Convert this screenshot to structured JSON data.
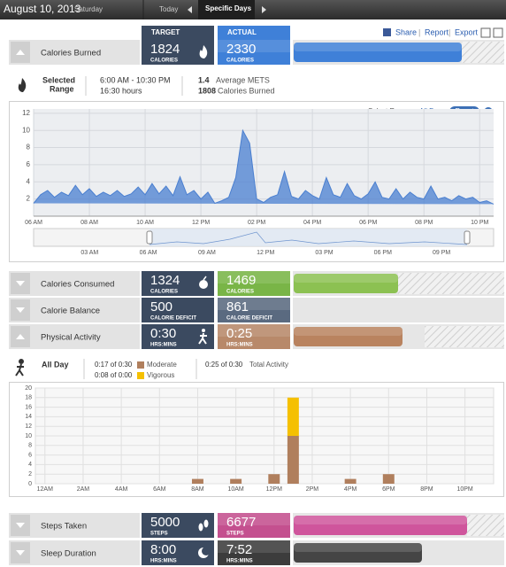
{
  "header": {
    "date": "August 10, 2013",
    "weekday": "Saturday",
    "tabs": [
      "Today",
      "Specific Days"
    ]
  },
  "toolbar": {
    "columns": [
      "TARGET",
      "ACTUAL"
    ],
    "links": [
      "Share",
      "Report",
      "Export"
    ]
  },
  "rows": [
    {
      "label": "Calories Burned",
      "target": 1824,
      "target_unit": "CALORIES",
      "actual": 2330,
      "actual_unit": "CALORIES"
    },
    {
      "label": "Calories Consumed",
      "target": 1324,
      "target_unit": "CALORIES",
      "actual": 1469,
      "actual_unit": "CALORIES"
    },
    {
      "label": "Calorie Balance",
      "target": 500,
      "target_unit": "CALORIE DEFICIT",
      "actual": 861,
      "actual_unit": "CALORIE DEFICIT"
    },
    {
      "label": "Physical Activity",
      "target": "0:30",
      "target_unit": "HRS:MINS",
      "actual": "0:25",
      "actual_unit": "HRS:MINS"
    },
    {
      "label": "Steps Taken",
      "target": 5000,
      "target_unit": "STEPS",
      "actual": 6677,
      "actual_unit": "STEPS"
    },
    {
      "label": "Sleep Duration",
      "target": "8:00",
      "target_unit": "HRS:MINS",
      "actual": "7:52",
      "actual_unit": "HRS:MINS"
    }
  ],
  "selected_range": {
    "title": [
      "Selected",
      "Range"
    ],
    "range": "6:00 AM - 10:30 PM",
    "duration": "16:30 hours",
    "mets": 1.4,
    "mets_label": "Average METS",
    "calories": 1808,
    "calories_label": "Calories Burned",
    "select_label": "Select Range:",
    "all_day": "All Day",
    "reset": "Reset"
  },
  "activity_summary": {
    "title": "All Day",
    "moderate": "0:17 of 0:30",
    "moderate_label": "Moderate",
    "vigorous": "0:08 of 0:00",
    "vigorous_label": "Vigorous",
    "total": "0:25 of 0:30",
    "total_label": "Total Activity"
  },
  "chart_data": [
    {
      "type": "area",
      "color": "#4a7fd0",
      "x": [
        6,
        6.25,
        6.5,
        6.75,
        7,
        7.25,
        7.5,
        7.75,
        8,
        8.25,
        8.5,
        8.75,
        9,
        9.25,
        9.5,
        9.75,
        10,
        10.25,
        10.5,
        10.75,
        11,
        11.25,
        11.5,
        11.75,
        12,
        12.25,
        12.5,
        12.75,
        13,
        13.25,
        13.5,
        13.75,
        14,
        14.25,
        14.5,
        14.75,
        15,
        15.25,
        15.5,
        15.75,
        16,
        16.25,
        16.5,
        16.75,
        17,
        17.25,
        17.5,
        17.75,
        18,
        18.25,
        18.5,
        18.75,
        19,
        19.25,
        19.5,
        19.75,
        20,
        20.25,
        20.5,
        20.75,
        21,
        21.25,
        21.5,
        21.75,
        22,
        22.25,
        22.5
      ],
      "values": [
        1.5,
        2.5,
        3,
        2.2,
        2.8,
        2.4,
        3.6,
        2.5,
        3.2,
        2.3,
        2.8,
        2.4,
        3.0,
        2.3,
        2.6,
        3.4,
        2.5,
        3.8,
        2.6,
        3.5,
        2.4,
        4.6,
        2.5,
        3.0,
        2.0,
        2.8,
        1.5,
        1.8,
        2.2,
        4.5,
        10.0,
        8.5,
        2.0,
        1.6,
        2.2,
        2.5,
        5.2,
        2.3,
        2.0,
        3.0,
        2.4,
        2.0,
        4.5,
        2.5,
        2.2,
        3.8,
        2.4,
        2.0,
        2.6,
        4.0,
        2.2,
        2.0,
        3.2,
        2.0,
        2.8,
        2.2,
        2.0,
        3.5,
        2.0,
        2.2,
        1.8,
        2.4,
        2.0,
        2.2,
        1.6,
        1.8,
        1.4
      ],
      "xlim": [
        6,
        22.5
      ],
      "xticks": [
        {
          "value": 6,
          "label": "06 AM"
        },
        {
          "value": 8,
          "label": "08 AM"
        },
        {
          "value": 10,
          "label": "10 AM"
        },
        {
          "value": 12,
          "label": "12 PM"
        },
        {
          "value": 14,
          "label": "02 PM"
        },
        {
          "value": 16,
          "label": "04 PM"
        },
        {
          "value": 18,
          "label": "06 PM"
        },
        {
          "value": 20,
          "label": "08 PM"
        },
        {
          "value": 22,
          "label": "10 PM"
        }
      ],
      "ylim": [
        0,
        12.5
      ],
      "yticks": [
        2,
        4,
        6,
        8,
        10,
        12
      ],
      "grid": true,
      "navigator_labels": [
        "03 AM",
        "06 AM",
        "09 AM",
        "12 PM",
        "03 PM",
        "06 PM",
        "09 PM"
      ]
    },
    {
      "type": "bar",
      "stacked": true,
      "categories": [
        "12AM",
        null,
        "2AM",
        null,
        "4AM",
        null,
        "6AM",
        null,
        "8AM",
        null,
        "10AM",
        null,
        "12PM",
        null,
        "2PM",
        null,
        "4PM",
        null,
        "6PM",
        null,
        "8PM",
        null,
        "10PM",
        null
      ],
      "series": [
        {
          "name": "Moderate",
          "color": "#b07f5d",
          "values": [
            0,
            0,
            0,
            0,
            0,
            0,
            0,
            0,
            1,
            0,
            1,
            0,
            2,
            10,
            0,
            0,
            1,
            0,
            2,
            0,
            0,
            0,
            0,
            0
          ]
        },
        {
          "name": "Vigorous",
          "color": "#f5c000",
          "values": [
            0,
            0,
            0,
            0,
            0,
            0,
            0,
            0,
            0,
            0,
            0,
            0,
            0,
            8,
            0,
            0,
            0,
            0,
            0,
            0,
            0,
            0,
            0,
            0
          ]
        }
      ],
      "ylim": [
        0,
        20
      ],
      "yticks": [
        0,
        2,
        4,
        6,
        8,
        10,
        12,
        14,
        16,
        18,
        20
      ],
      "grid": true
    }
  ]
}
